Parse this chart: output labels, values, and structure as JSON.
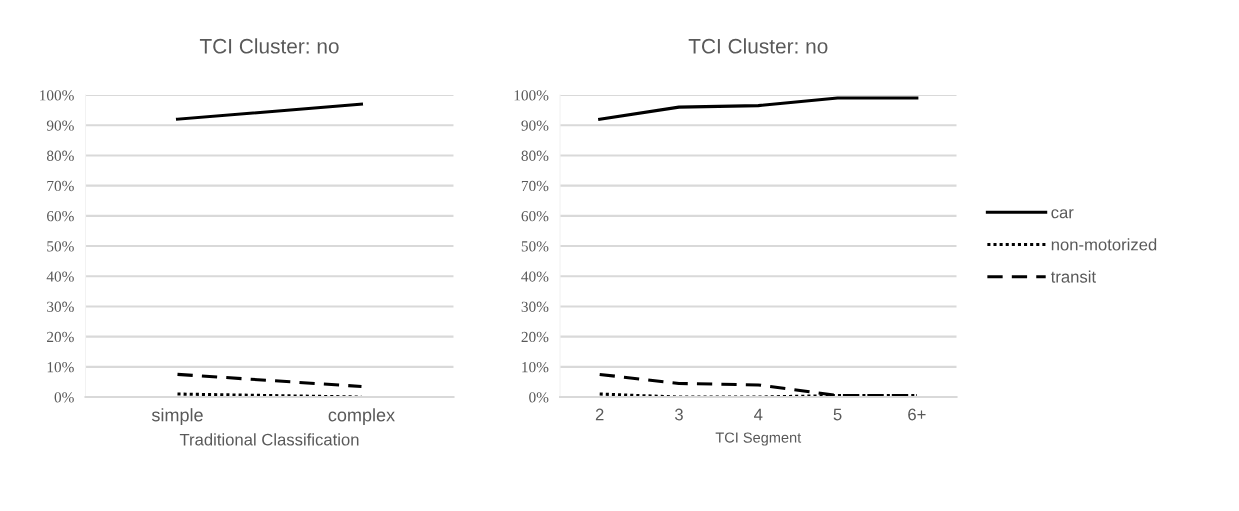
{
  "chart_data": [
    {
      "type": "line",
      "title": "TCI Cluster: no",
      "xlabel": "Traditional Classification",
      "categories": [
        "simple",
        "complex"
      ],
      "series": [
        {
          "color": "#000000",
          "line_style": "solid",
          "values": [
            92,
            97
          ]
        },
        {
          "color": "#000000",
          "line_style": "dotted",
          "values": [
            1,
            0
          ]
        },
        {
          "color": "#000000",
          "line_style": "dashed",
          "values": [
            7.5,
            3.5
          ]
        }
      ],
      "ylim": [
        0,
        100
      ],
      "yticks": [
        {
          "value": 0,
          "label": "0%"
        },
        {
          "value": 10,
          "label": "10%"
        },
        {
          "value": 20,
          "label": "20%"
        },
        {
          "value": 30,
          "label": "30%"
        },
        {
          "value": 40,
          "label": "40%"
        },
        {
          "value": 50,
          "label": "50%"
        },
        {
          "value": 60,
          "label": "60%"
        },
        {
          "value": 70,
          "label": "70%"
        },
        {
          "value": 80,
          "label": "80%"
        },
        {
          "value": 90,
          "label": "90%"
        },
        {
          "value": 100,
          "label": "100%"
        }
      ],
      "grid": "y"
    },
    {
      "type": "line",
      "title": "TCI Cluster: no",
      "xlabel": "TCI Segment",
      "categories": [
        "2",
        "3",
        "4",
        "5",
        "6+"
      ],
      "series": [
        {
          "name": "car",
          "color": "#000000",
          "line_style": "solid",
          "values": [
            92,
            96,
            96.5,
            99,
            99
          ]
        },
        {
          "name": "non-motorized",
          "color": "#000000",
          "line_style": "dotted",
          "values": [
            1,
            0,
            0,
            0.5,
            0.5
          ]
        },
        {
          "name": "transit",
          "color": "#000000",
          "line_style": "dashed",
          "values": [
            7.5,
            4.5,
            4,
            0.5,
            0.5
          ]
        }
      ],
      "ylim": [
        0,
        100
      ],
      "yticks": [
        {
          "value": 0,
          "label": "0%"
        },
        {
          "value": 10,
          "label": "10%"
        },
        {
          "value": 20,
          "label": "20%"
        },
        {
          "value": 30,
          "label": "30%"
        },
        {
          "value": 40,
          "label": "40%"
        },
        {
          "value": 50,
          "label": "50%"
        },
        {
          "value": 60,
          "label": "60%"
        },
        {
          "value": 70,
          "label": "70%"
        },
        {
          "value": 80,
          "label": "80%"
        },
        {
          "value": 90,
          "label": "90%"
        },
        {
          "value": 100,
          "label": "100%"
        }
      ],
      "grid": "y",
      "legend": "right"
    }
  ]
}
